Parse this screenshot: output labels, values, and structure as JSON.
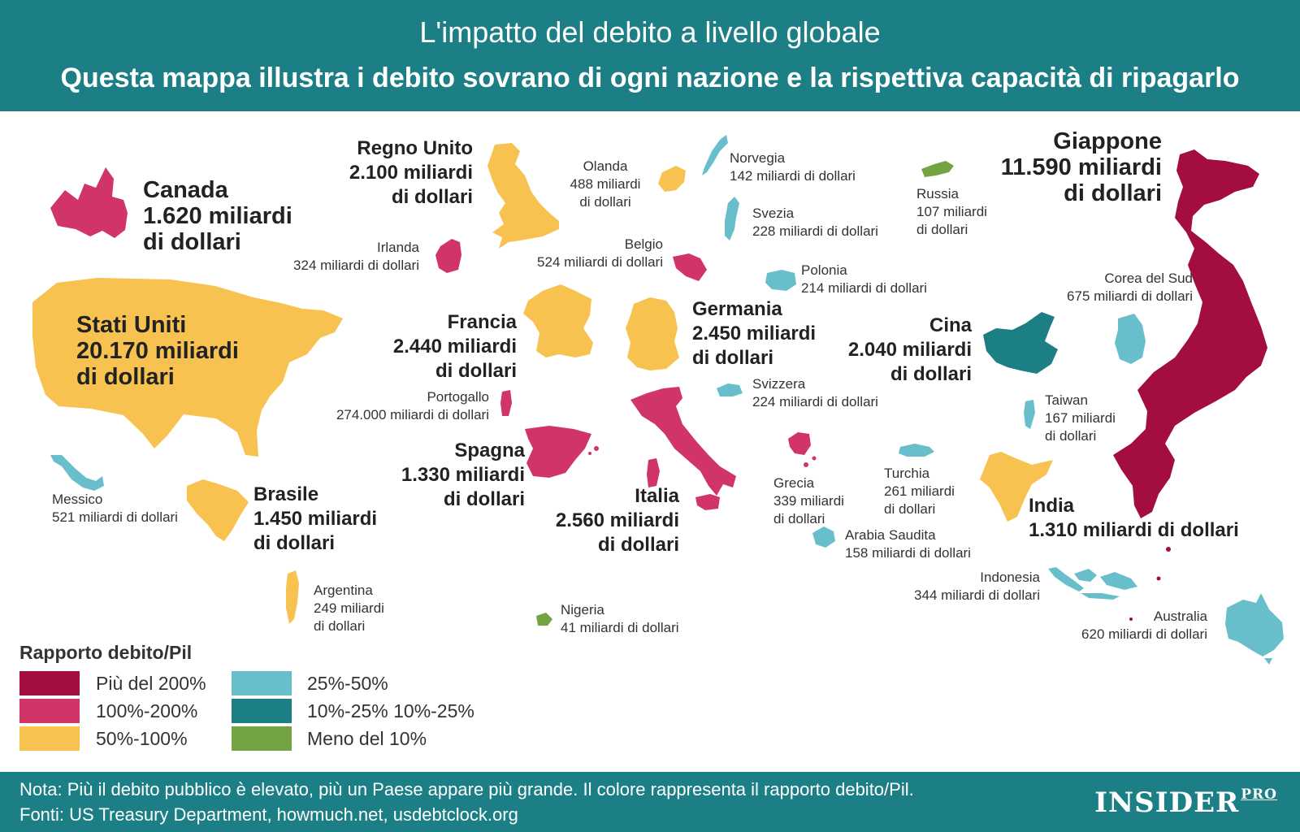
{
  "header": {
    "title": "L'impatto del debito a livello globale",
    "subtitle": "Questa mappa illustra i debito sovrano di ogni nazione e la rispettiva capacità di ripagarlo"
  },
  "colors": {
    "header_bg": "#1d7f86",
    "over_200": "#a30d3f",
    "r100_200": "#d13466",
    "r50_100": "#f7c24f",
    "r25_50": "#68bfcb",
    "r10_25": "#1d7f86",
    "under_10": "#72a441"
  },
  "countries": {
    "canada": {
      "name": "Canada",
      "debt": "1.620 miliardi",
      "unit": "di dollari"
    },
    "usa": {
      "name": "Stati Uniti",
      "debt": "20.170 miliardi",
      "unit": "di dollari"
    },
    "uk": {
      "name": "Regno Unito",
      "debt": "2.100 miliardi",
      "unit": "di dollari"
    },
    "ireland": {
      "name": "Irlanda",
      "debt": "324 miliardi di dollari"
    },
    "netherlands": {
      "name": "Olanda",
      "debt1": "488 miliardi",
      "debt2": "di dollari"
    },
    "norway": {
      "name": "Norvegia",
      "debt": "142 miliardi di dollari"
    },
    "sweden": {
      "name": "Svezia",
      "debt": "228 miliardi di dollari"
    },
    "russia": {
      "name": "Russia",
      "debt1": "107 miliardi",
      "debt2": "di dollari"
    },
    "japan": {
      "name": "Giappone",
      "debt": "11.590 miliardi",
      "unit": "di dollari"
    },
    "belgium": {
      "name": "Belgio",
      "debt": "524 miliardi di dollari"
    },
    "poland": {
      "name": "Polonia",
      "debt": "214 miliardi di dollari"
    },
    "south_korea": {
      "name": "Corea del Sud",
      "debt": "675 miliardi di dollari"
    },
    "france": {
      "name": "Francia",
      "debt": "2.440 miliardi",
      "unit": "di dollari"
    },
    "germany": {
      "name": "Germania",
      "debt": "2.450 miliardi",
      "unit": "di dollari"
    },
    "china": {
      "name": "Cina",
      "debt": "2.040 miliardi",
      "unit": "di dollari"
    },
    "portugal": {
      "name": "Portogallo",
      "debt": "274.000 miliardi di dollari"
    },
    "switzerland": {
      "name": "Svizzera",
      "debt": "224 miliardi di dollari"
    },
    "taiwan": {
      "name": "Taiwan",
      "debt1": "167 miliardi",
      "debt2": "di dollari"
    },
    "spain": {
      "name": "Spagna",
      "debt": "1.330 miliardi",
      "unit": "di dollari"
    },
    "mexico": {
      "name": "Messico",
      "debt": "521 miliardi di dollari"
    },
    "brazil": {
      "name": "Brasile",
      "debt": "1.450 miliardi",
      "unit": "di dollari"
    },
    "italy": {
      "name": "Italia",
      "debt": "2.560 miliardi",
      "unit": "di dollari"
    },
    "greece": {
      "name": "Grecia",
      "debt1": "339 miliardi",
      "debt2": "di dollari"
    },
    "turkey": {
      "name": "Turchia",
      "debt1": "261 miliardi",
      "debt2": "di dollari"
    },
    "india": {
      "name": "India",
      "debt": "1.310 miliardi di dollari"
    },
    "saudi_arabia": {
      "name": "Arabia Saudita",
      "debt": "158 miliardi di dollari"
    },
    "indonesia": {
      "name": "Indonesia",
      "debt": "344 miliardi di dollari"
    },
    "argentina": {
      "name": "Argentina",
      "debt1": "249 miliardi",
      "debt2": "di dollari"
    },
    "nigeria": {
      "name": "Nigeria",
      "debt": "41 miliardi di dollari"
    },
    "australia": {
      "name": "Australia",
      "debt": "620 miliardi di dollari"
    }
  },
  "legend": {
    "title": "Rapporto debito/Pil",
    "items": [
      {
        "label": "Più del 200%"
      },
      {
        "label": "100%-200%"
      },
      {
        "label": "50%-100%"
      },
      {
        "label": "25%-50%"
      },
      {
        "label": "10%-25% 10%-25%"
      },
      {
        "label": "Meno del 10%"
      }
    ]
  },
  "footer": {
    "note": "Nota: Più il debito pubblico è elevato, più un Paese appare più grande. Il colore rappresenta il rapporto debito/Pil.",
    "sources": "Fonti: US Treasury Department, howmuch.net, usdebtclock.org",
    "logo": "INSIDER",
    "logo_suffix": "PRO"
  }
}
